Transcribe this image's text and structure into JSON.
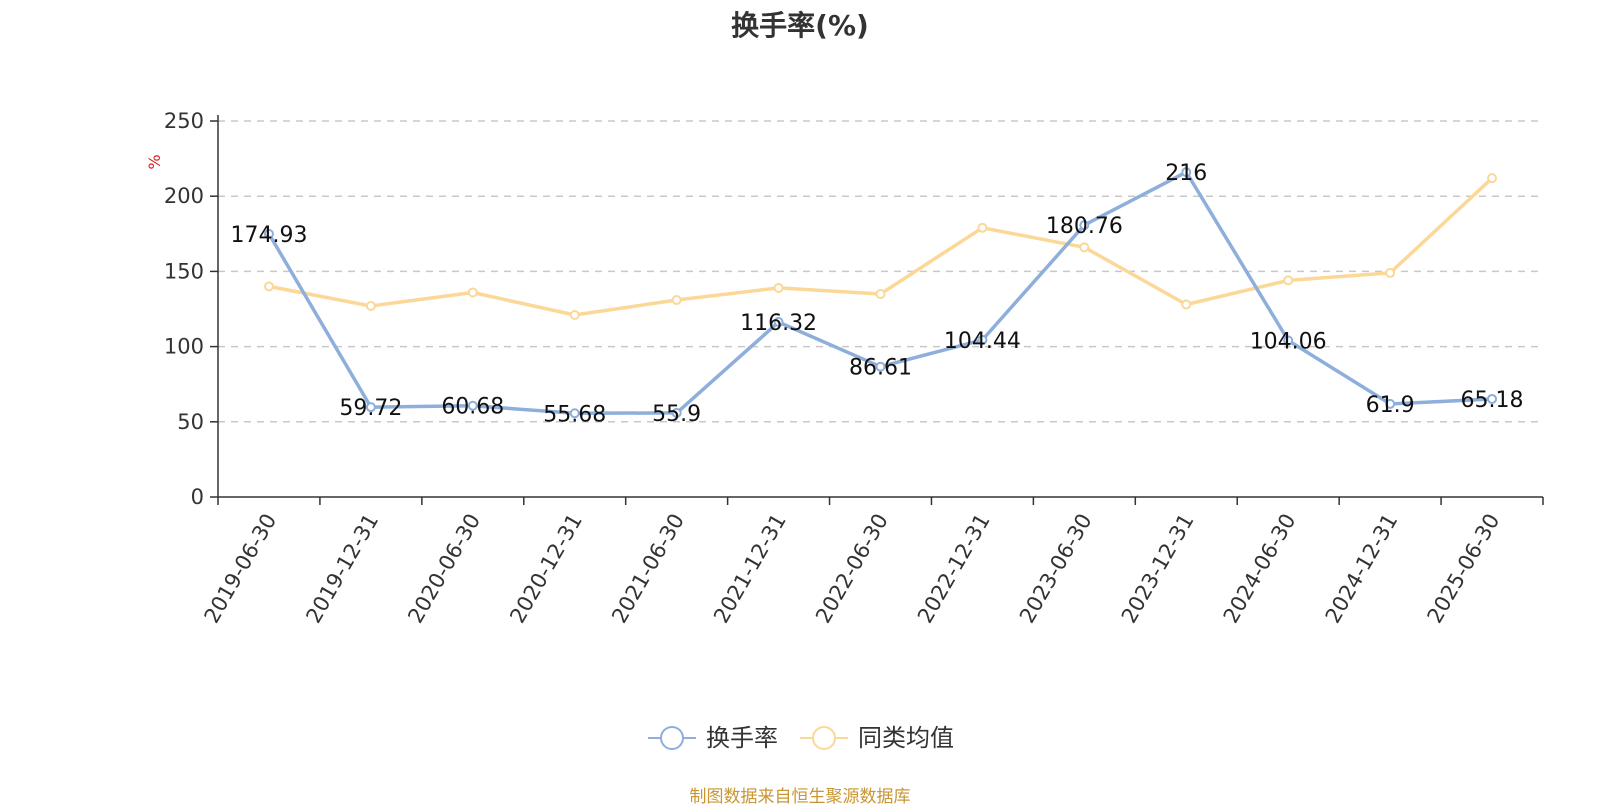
{
  "title": "换手率(%)",
  "source": "制图数据来自恒生聚源数据库",
  "chart_data": {
    "type": "line",
    "title": "换手率(%)",
    "ylabel": "%",
    "xlabel": "",
    "ylim": [
      0,
      250
    ],
    "yticks": [
      0,
      50,
      100,
      150,
      200,
      250
    ],
    "grid": true,
    "legend_position": "bottom",
    "categories": [
      "2019-06-30",
      "2019-12-31",
      "2020-06-30",
      "2020-12-31",
      "2021-06-30",
      "2021-12-31",
      "2022-06-30",
      "2022-12-31",
      "2023-06-30",
      "2023-12-31",
      "2024-06-30",
      "2024-12-31",
      "2025-06-30"
    ],
    "series": [
      {
        "name": "换手率",
        "color": "#8eaedb",
        "show_labels": true,
        "values": [
          174.93,
          59.72,
          60.68,
          55.68,
          55.9,
          116.32,
          86.61,
          104.44,
          180.76,
          216,
          104.06,
          61.9,
          65.18
        ],
        "labels": [
          "174.93",
          "59.72",
          "60.68",
          "55.68",
          "55.9",
          "116.32",
          "86.61",
          "104.44",
          "180.76",
          "216",
          "104.06",
          "61.9",
          "65.18"
        ]
      },
      {
        "name": "同类均值",
        "color": "#fbd898",
        "show_labels": false,
        "values": [
          140,
          127,
          136,
          121,
          131,
          139,
          135,
          179,
          166,
          128,
          144,
          149,
          212
        ]
      }
    ]
  }
}
